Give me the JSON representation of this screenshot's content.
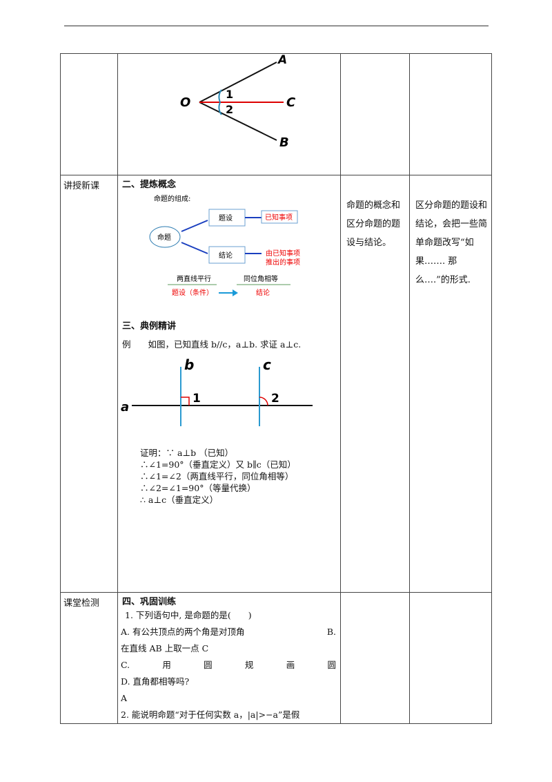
{
  "row1": {
    "fig": {
      "O": "O",
      "A": "A",
      "B": "B",
      "C": "C",
      "n1": "1",
      "n2": "2"
    }
  },
  "row2": {
    "label": "讲授新课",
    "h2": "二、提炼概念",
    "diagram": {
      "title": "命题的组成:",
      "root": "命题",
      "hyp": "题设",
      "con": "结论",
      "known": "已知事项",
      "derived1": "由已知事项",
      "derived2": "推出的事项",
      "ex1": "两直线平行",
      "ex2": "同位角相等",
      "hypcond": "题设（条件）",
      "conc": "结论"
    },
    "h3": "三、典例精讲",
    "example": "例　　如图，已知直线 b//c，a⊥b. 求证 a⊥c.",
    "fig2": {
      "a": "a",
      "b": "b",
      "c": "c",
      "n1": "1",
      "n2": "2"
    },
    "proof": [
      "证明：∵ a⊥b （已知）",
      "∴∠1=90°（垂直定义）又 b∥c（已知）",
      "∴∠1=∠2（两直线平行，同位角相等）",
      "∴∠2=∠1=90°（等量代换）",
      "∴ a⊥c（垂直定义）"
    ],
    "col3": "命题的概念和区分命题的题设与结论。",
    "col4": "区分命题的题设和结论，会把一些简单命题改写“如果……. 那么….”的形式."
  },
  "row3": {
    "label": "课堂检测",
    "h4": "四、巩固训练",
    "q1": "1. 下列语句中, 是命题的是(　　)",
    "optA": "A. 有公共顶点的两个角是对顶角",
    "optB1": "B.",
    "optB2": "在直线 AB 上取一点 C",
    "optC": [
      "C.",
      "用",
      "圆",
      "规",
      "画",
      "圆"
    ],
    "optD": "D. 直角都相等吗?",
    "ans": "A",
    "q2": "2.  能说明命题“对于任何实数 a，|a|>−a”是假"
  }
}
